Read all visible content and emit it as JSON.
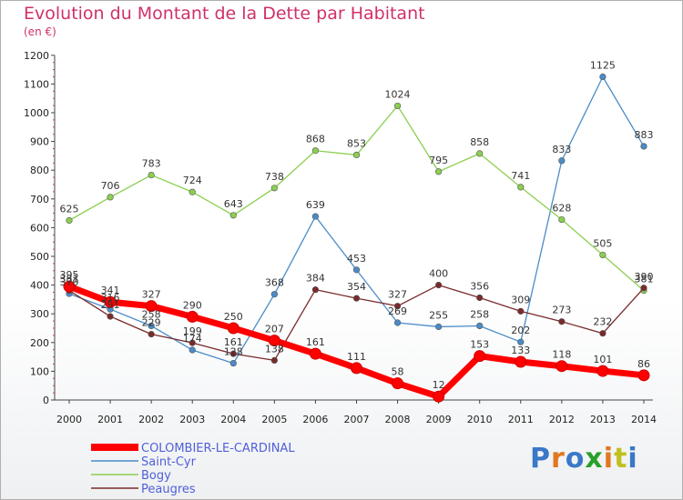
{
  "header": {
    "title": "Evolution du Montant de la Dette par Habitant",
    "subtitle": "(en €)"
  },
  "logo": {
    "text": "Proxiti",
    "colors": [
      "#3a78c8",
      "#e07820",
      "#3a78c8",
      "#2aa02a",
      "#e07820",
      "#c0c020",
      "#3a78c8"
    ]
  },
  "chart_data": {
    "type": "line",
    "title": "Evolution du Montant de la Dette par Habitant",
    "ylabel": "(en €)",
    "xlabel": "",
    "x": [
      2000,
      2001,
      2002,
      2003,
      2004,
      2005,
      2006,
      2007,
      2008,
      2009,
      2010,
      2011,
      2012,
      2013,
      2014
    ],
    "yticks": [
      0,
      100,
      200,
      300,
      400,
      500,
      600,
      700,
      800,
      900,
      1000,
      1100,
      1200
    ],
    "ylim": [
      0,
      1200
    ],
    "grid": false,
    "legend": "bottom-left",
    "series": [
      {
        "name": "COLOMBIER-LE-CARDINAL",
        "color": "#ff0000",
        "values": [
          395,
          341,
          327,
          290,
          250,
          207,
          161,
          111,
          58,
          12,
          153,
          133,
          118,
          101,
          86
        ]
      },
      {
        "name": "Saint-Cyr",
        "color": "#4a8cc8",
        "values": [
          370,
          316,
          258,
          174,
          128,
          368,
          639,
          453,
          269,
          255,
          258,
          202,
          833,
          1125,
          883
        ]
      },
      {
        "name": "Bogy",
        "color": "#8ccf50",
        "values": [
          625,
          706,
          783,
          724,
          643,
          738,
          868,
          853,
          1024,
          795,
          858,
          741,
          628,
          505,
          381
        ]
      },
      {
        "name": "Peaugres",
        "color": "#7a2a2a",
        "values": [
          381,
          291,
          229,
          199,
          161,
          138,
          384,
          354,
          327,
          400,
          356,
          309,
          273,
          232,
          390
        ]
      }
    ]
  }
}
